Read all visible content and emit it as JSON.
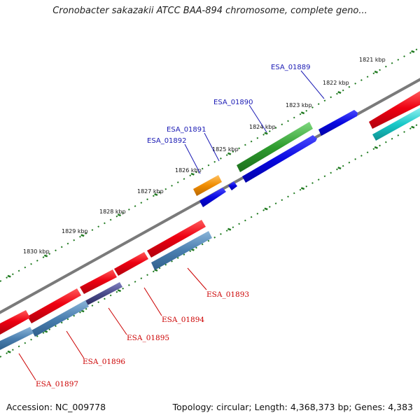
{
  "title": "Cronobacter sakazakii ATCC BAA-894 chromosome, complete geno...",
  "footer": {
    "accession": "Accession: NC_009778",
    "summary": "Topology: circular; Length: 4,368,373 bp; Genes: 4,383"
  },
  "ticks": [
    "1821 kbp",
    "1822 kbp",
    "1823 kbp",
    "1824 kbp",
    "1825 kbp",
    "1826 kbp",
    "1827 kbp",
    "1828 kbp",
    "1829 kbp",
    "1830 kbp"
  ],
  "genes_top": [
    {
      "name": "ESA_01889"
    },
    {
      "name": "ESA_01890"
    },
    {
      "name": "ESA_01891"
    },
    {
      "name": "ESA_01892"
    }
  ],
  "genes_bottom": [
    {
      "name": "ESA_01893"
    },
    {
      "name": "ESA_01894"
    },
    {
      "name": "ESA_01895"
    },
    {
      "name": "ESA_01896"
    },
    {
      "name": "ESA_01897"
    }
  ],
  "colors": {
    "backbone": "#7a7a7a",
    "tick": "#1f7a1f",
    "cds": "#e8001a",
    "gene_forward": "#0a0ad8",
    "gene_reverse": "#4a7fb0",
    "gene_green": "#2e9c2e",
    "gene_orange": "#f08c00",
    "gene_cyan": "#18c8c8",
    "gene_purple": "#4a4a8a",
    "label_top": "#1a1ab4",
    "label_bottom": "#cc0000"
  }
}
